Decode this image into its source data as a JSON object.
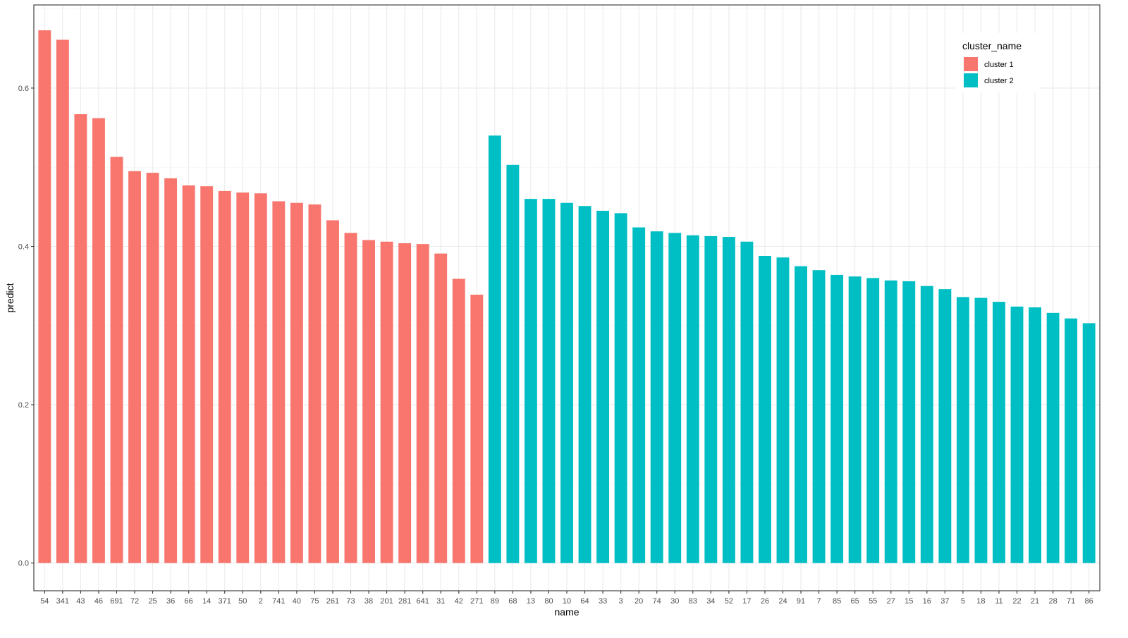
{
  "chart_data": {
    "type": "bar",
    "xlabel": "name",
    "ylabel": "predict",
    "ylim": [
      -0.035,
      0.705
    ],
    "yticks": [
      0.0,
      0.2,
      0.4,
      0.6
    ],
    "ytick_labels": [
      "0.0",
      "0.2",
      "0.4",
      "0.6"
    ],
    "grid": true,
    "legend": {
      "title": "cluster_name",
      "position": "top-right",
      "entries": [
        {
          "label": "cluster 1",
          "color": "#F8766D"
        },
        {
          "label": "cluster 2",
          "color": "#00BFC4"
        }
      ]
    },
    "categories": [
      "54",
      "341",
      "43",
      "46",
      "691",
      "72",
      "25",
      "36",
      "66",
      "14",
      "371",
      "50",
      "2",
      "741",
      "40",
      "75",
      "261",
      "73",
      "38",
      "201",
      "281",
      "641",
      "31",
      "42",
      "271",
      "89",
      "68",
      "13",
      "80",
      "10",
      "64",
      "33",
      "3",
      "20",
      "74",
      "30",
      "83",
      "34",
      "52",
      "17",
      "26",
      "24",
      "91",
      "7",
      "85",
      "65",
      "55",
      "27",
      "15",
      "16",
      "37",
      "5",
      "18",
      "11",
      "22",
      "21",
      "28",
      "71",
      "86"
    ],
    "values": [
      0.673,
      0.661,
      0.567,
      0.562,
      0.513,
      0.495,
      0.493,
      0.486,
      0.477,
      0.476,
      0.47,
      0.468,
      0.467,
      0.457,
      0.455,
      0.453,
      0.433,
      0.417,
      0.408,
      0.406,
      0.404,
      0.403,
      0.391,
      0.359,
      0.339,
      0.54,
      0.503,
      0.46,
      0.46,
      0.455,
      0.451,
      0.445,
      0.442,
      0.424,
      0.419,
      0.417,
      0.414,
      0.413,
      0.412,
      0.406,
      0.388,
      0.386,
      0.375,
      0.37,
      0.364,
      0.362,
      0.36,
      0.357,
      0.356,
      0.35,
      0.346,
      0.336,
      0.335,
      0.33,
      0.324,
      0.323,
      0.316,
      0.309,
      0.303
    ],
    "clusters": [
      "cluster 1",
      "cluster 1",
      "cluster 1",
      "cluster 1",
      "cluster 1",
      "cluster 1",
      "cluster 1",
      "cluster 1",
      "cluster 1",
      "cluster 1",
      "cluster 1",
      "cluster 1",
      "cluster 1",
      "cluster 1",
      "cluster 1",
      "cluster 1",
      "cluster 1",
      "cluster 1",
      "cluster 1",
      "cluster 1",
      "cluster 1",
      "cluster 1",
      "cluster 1",
      "cluster 1",
      "cluster 1",
      "cluster 2",
      "cluster 2",
      "cluster 2",
      "cluster 2",
      "cluster 2",
      "cluster 2",
      "cluster 2",
      "cluster 2",
      "cluster 2",
      "cluster 2",
      "cluster 2",
      "cluster 2",
      "cluster 2",
      "cluster 2",
      "cluster 2",
      "cluster 2",
      "cluster 2",
      "cluster 2",
      "cluster 2",
      "cluster 2",
      "cluster 2",
      "cluster 2",
      "cluster 2",
      "cluster 2",
      "cluster 2",
      "cluster 2",
      "cluster 2",
      "cluster 2",
      "cluster 2",
      "cluster 2",
      "cluster 2",
      "cluster 2",
      "cluster 2",
      "cluster 2"
    ]
  }
}
